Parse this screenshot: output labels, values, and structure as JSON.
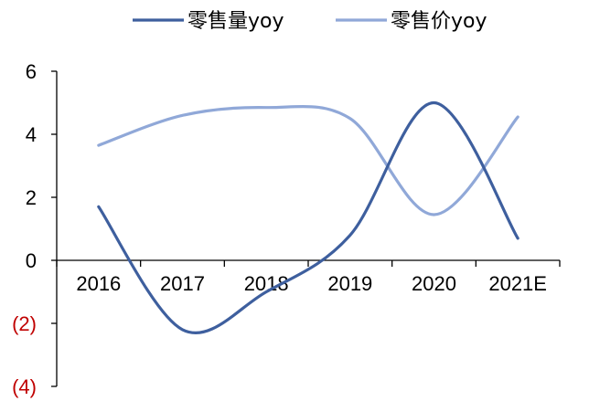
{
  "chart_data": {
    "type": "line",
    "categories": [
      "2016",
      "2017",
      "2018",
      "2019",
      "2020",
      "2021E"
    ],
    "series": [
      {
        "name": "零售量yoy",
        "values": [
          1.7,
          -2.2,
          -1.0,
          0.8,
          5.0,
          0.7
        ],
        "color": "#3e5f9e"
      },
      {
        "name": "零售价yoy",
        "values": [
          3.65,
          4.6,
          4.85,
          4.5,
          1.45,
          4.55
        ],
        "color": "#90a8d8"
      }
    ],
    "y_tick_labels": [
      "(4)",
      "(2)",
      "0",
      "2",
      "4",
      "6"
    ],
    "ylim": [
      -4,
      6
    ],
    "negative_tick_color": "#c00000",
    "smoothed": true,
    "legend_position": "top",
    "grid": false
  }
}
